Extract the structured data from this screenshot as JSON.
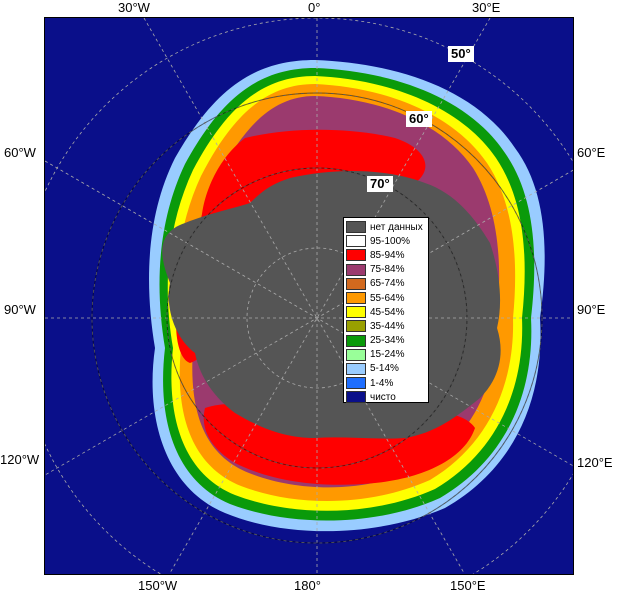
{
  "longitude_labels": {
    "top": [
      "30°W",
      "0°",
      "30°E"
    ],
    "left": [
      "60°W",
      "90°W",
      "120°W"
    ],
    "right": [
      "60°E",
      "90°E",
      "120°E"
    ],
    "bottom": [
      "150°W",
      "180°",
      "150°E"
    ]
  },
  "latitude_labels": [
    "50°",
    "60°",
    "70°"
  ],
  "legend": {
    "items": [
      {
        "label": "нет данных",
        "color": "#555555"
      },
      {
        "label": "95-100%",
        "color": "#ffffff"
      },
      {
        "label": "85-94%",
        "color": "#ff0000"
      },
      {
        "label": "75-84%",
        "color": "#9b3a6e"
      },
      {
        "label": "65-74%",
        "color": "#d2691e"
      },
      {
        "label": "55-64%",
        "color": "#ff9900"
      },
      {
        "label": "45-54%",
        "color": "#ffff00"
      },
      {
        "label": "35-44%",
        "color": "#99a000"
      },
      {
        "label": "25-34%",
        "color": "#0a9a0a"
      },
      {
        "label": "15-24%",
        "color": "#99ff99"
      },
      {
        "label": "5-14%",
        "color": "#99ccff"
      },
      {
        "label": "1-4%",
        "color": "#1e6eff"
      },
      {
        "label": "чисто",
        "color": "#0a0f8a"
      }
    ]
  }
}
